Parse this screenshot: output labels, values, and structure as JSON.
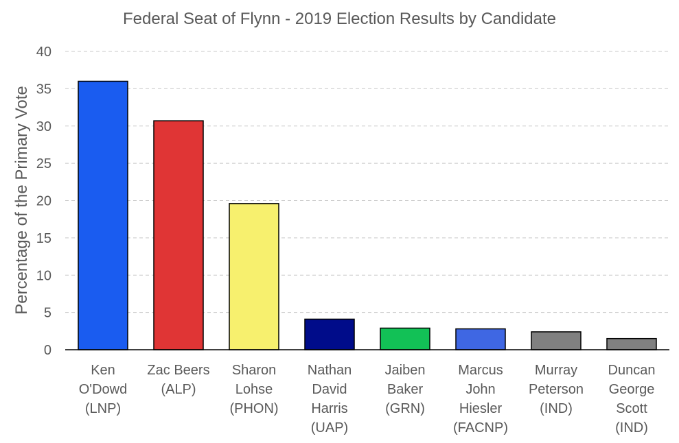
{
  "chart_data": {
    "type": "bar",
    "title": "Federal Seat of Flynn - 2019 Election Results by Candidate",
    "xlabel": "",
    "ylabel": "Percentage of the Primary Vote",
    "ylim": [
      0,
      40
    ],
    "yticks": [
      0,
      5,
      10,
      15,
      20,
      25,
      30,
      35,
      40
    ],
    "grid": true,
    "categories": [
      [
        "Ken",
        "O'Dowd",
        "(LNP)"
      ],
      [
        "Zac Beers",
        "(ALP)"
      ],
      [
        "Sharon",
        "Lohse",
        "(PHON)"
      ],
      [
        "Nathan",
        "David",
        "Harris",
        "(UAP)"
      ],
      [
        "Jaiben",
        "Baker",
        "(GRN)"
      ],
      [
        "Marcus",
        "John",
        "Hiesler",
        "(FACNP)"
      ],
      [
        "Murray",
        "Peterson",
        "(IND)"
      ],
      [
        "Duncan",
        "George",
        "Scott",
        "(IND)"
      ]
    ],
    "values": [
      36.0,
      30.7,
      19.6,
      4.1,
      2.9,
      2.8,
      2.4,
      1.5
    ],
    "colors": [
      "#1a5cf0",
      "#e03535",
      "#f7f06e",
      "#000c8a",
      "#12c156",
      "#3f67e3",
      "#808080",
      "#808080"
    ]
  }
}
